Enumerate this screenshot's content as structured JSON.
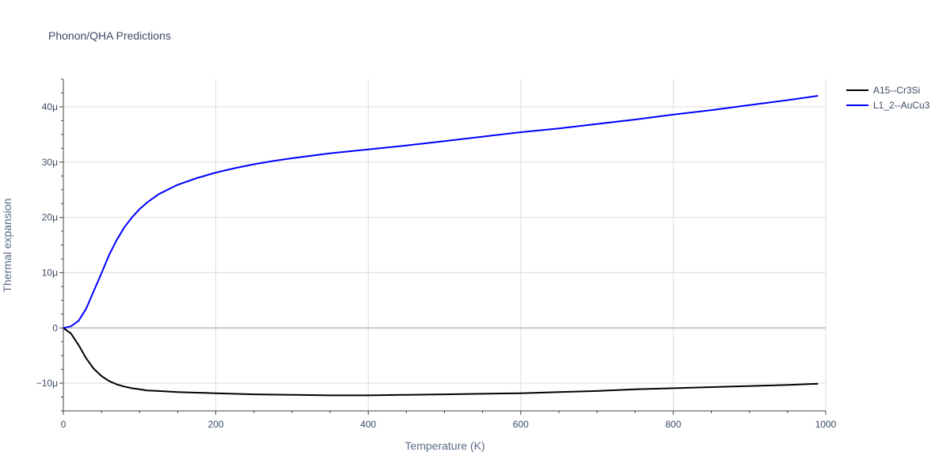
{
  "chart_data": {
    "type": "line",
    "title": "Phonon/QHA Predictions",
    "xlabel": "Temperature (K)",
    "ylabel": "Thermal expansion",
    "xlim": [
      0,
      1000
    ],
    "ylim": [
      -15,
      45
    ],
    "x_ticks": [
      0,
      200,
      400,
      600,
      800,
      1000
    ],
    "x_tick_labels": [
      "0",
      "200",
      "400",
      "600",
      "800",
      "1000"
    ],
    "y_ticks": [
      -10,
      0,
      10,
      20,
      30,
      40
    ],
    "y_tick_labels": [
      "−10μ",
      "0",
      "10μ",
      "20μ",
      "30μ",
      "40μ"
    ],
    "grid": true,
    "legend_position": "top-right",
    "series": [
      {
        "name": "A15--Cr3Si",
        "color": "#000000",
        "x": [
          0,
          10,
          20,
          30,
          40,
          50,
          60,
          70,
          80,
          90,
          100,
          110,
          125,
          150,
          175,
          200,
          250,
          300,
          350,
          380,
          400,
          450,
          500,
          550,
          600,
          650,
          700,
          750,
          800,
          850,
          900,
          950,
          990
        ],
        "y": [
          0,
          -1.0,
          -3.1,
          -5.5,
          -7.4,
          -8.7,
          -9.6,
          -10.2,
          -10.6,
          -10.9,
          -11.1,
          -11.3,
          -11.4,
          -11.6,
          -11.7,
          -11.8,
          -12.0,
          -12.1,
          -12.2,
          -12.2,
          -12.2,
          -12.1,
          -12.0,
          -11.9,
          -11.8,
          -11.6,
          -11.4,
          -11.1,
          -10.9,
          -10.7,
          -10.5,
          -10.3,
          -10.1
        ]
      },
      {
        "name": "L1_2--AuCu3",
        "color": "#0000ff",
        "x": [
          0,
          10,
          20,
          30,
          40,
          50,
          60,
          70,
          80,
          90,
          100,
          110,
          125,
          150,
          175,
          200,
          225,
          250,
          275,
          300,
          350,
          400,
          450,
          500,
          550,
          600,
          650,
          700,
          750,
          800,
          850,
          900,
          950,
          990
        ],
        "y": [
          0,
          0.3,
          1.3,
          3.5,
          6.7,
          9.9,
          13.2,
          15.9,
          18.2,
          20.0,
          21.5,
          22.7,
          24.2,
          25.9,
          27.1,
          28.1,
          28.9,
          29.6,
          30.2,
          30.7,
          31.6,
          32.3,
          33.0,
          33.8,
          34.6,
          35.4,
          36.1,
          36.9,
          37.7,
          38.6,
          39.4,
          40.3,
          41.2,
          42.0
        ]
      }
    ]
  }
}
